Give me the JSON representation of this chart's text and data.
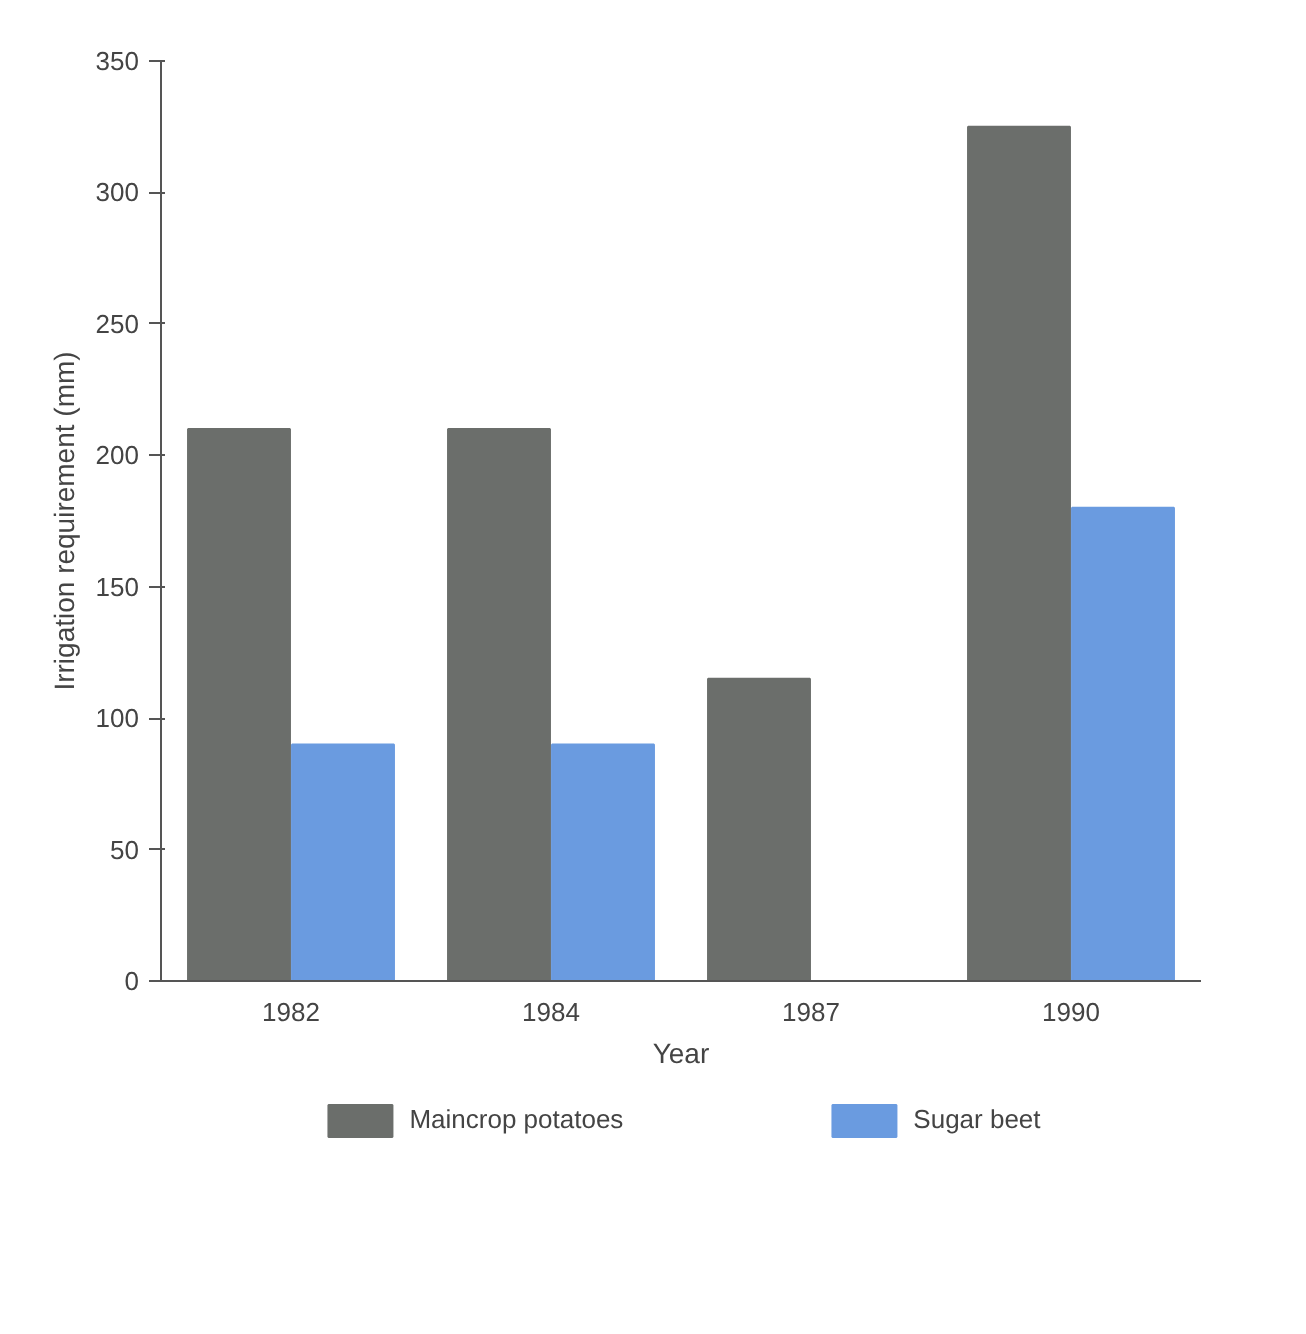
{
  "chart_data": {
    "type": "bar",
    "xlabel": "Year",
    "ylabel": "Irrigation requirement (mm)",
    "categories": [
      "1982",
      "1984",
      "1987",
      "1990"
    ],
    "series": [
      {
        "name": "Maincrop potatoes",
        "color": "#6b6e6b",
        "values": [
          210,
          210,
          115,
          325
        ]
      },
      {
        "name": "Sugar beet",
        "color": "#6a9be0",
        "values": [
          90,
          90,
          null,
          180
        ]
      }
    ],
    "ylim": [
      0,
      350
    ],
    "yticks": [
      0,
      50,
      100,
      150,
      200,
      250,
      300,
      350
    ],
    "grid": false,
    "legend": "bottom"
  }
}
